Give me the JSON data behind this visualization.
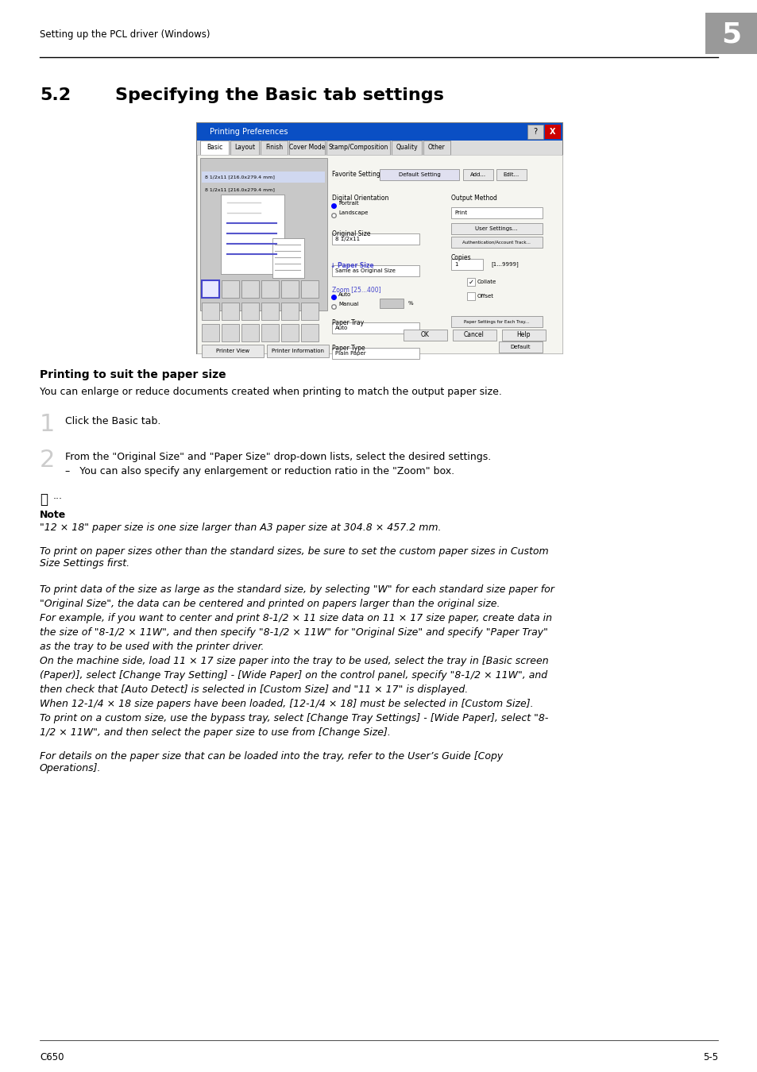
{
  "page_bg": "#ffffff",
  "header_text": "Setting up the PCL driver (Windows)",
  "header_chapter_num": "5",
  "section_num": "5.2",
  "section_title": "Specifying the Basic tab settings",
  "subsection_title": "Printing to suit the paper size",
  "body_intro": "You can enlarge or reduce documents created when printing to match the output paper size.",
  "step1_num": "1",
  "step1_text": "Click the Basic tab.",
  "step2_num": "2",
  "step2_text": "From the \"Original Size\" and \"Paper Size\" drop-down lists, select the desired settings.",
  "step2_sub": "–   You can also specify any enlargement or reduction ratio in the \"Zoom\" box.",
  "note_label": "Note",
  "note_line1": "\"12 × 18\" paper size is one size larger than A3 paper size at 304.8 × 457.2 mm.",
  "note_para2": "To print on paper sizes other than the standard sizes, be sure to set the custom paper sizes in Custom\nSize Settings first.",
  "note_para3": "To print data of the size as large as the standard size, by selecting \"W\" for each standard size paper for\n\"Original Size\", the data can be centered and printed on papers larger than the original size.\nFor example, if you want to center and print 8-1/2 × 11 size data on 11 × 17 size paper, create data in\nthe size of \"8-1/2 × 11W\", and then specify \"8-1/2 × 11W\" for \"Original Size\" and specify \"Paper Tray\"\nas the tray to be used with the printer driver.\nOn the machine side, load 11 × 17 size paper into the tray to be used, select the tray in [Basic screen\n(Paper)], select [Change Tray Setting] - [Wide Paper] on the control panel, specify \"8-1/2 × 11W\", and\nthen check that [Auto Detect] is selected in [Custom Size] and \"11 × 17\" is displayed.\nWhen 12-1/4 × 18 size papers have been loaded, [12-1/4 × 18] must be selected in [Custom Size].\nTo print on a custom size, use the bypass tray, select [Change Tray Settings] - [Wide Paper], select \"8-\n1/2 × 11W\", and then select the paper size to use from [Change Size].",
  "note_para4": "For details on the paper size that can be loaded into the tray, refer to the User’s Guide [Copy\nOperations].",
  "footer_left": "C650",
  "footer_right": "5-5"
}
